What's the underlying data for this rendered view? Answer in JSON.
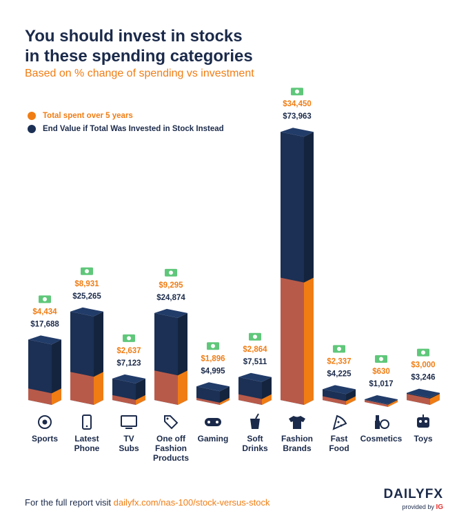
{
  "header": {
    "title_line1": "You should invest in stocks",
    "title_line2": "in these spending categories",
    "subtitle": "Based on % change of spending vs investment"
  },
  "colors": {
    "orange": "#f07d14",
    "navy": "#1b3054",
    "green": "#5fc77a",
    "text_dark": "#1b2a4a"
  },
  "chart_data": {
    "type": "bar",
    "title": "You should invest in stocks in these spending categories",
    "subtitle": "Based on % change of spending vs investment",
    "categories": [
      "Sports",
      "Latest Phone",
      "TV Subs",
      "One off Fashion Products",
      "Gaming",
      "Soft Drinks",
      "Fashion Brands",
      "Fast Food",
      "Cosmetics",
      "Toys"
    ],
    "category_labels": [
      [
        "Sports"
      ],
      [
        "Latest",
        "Phone"
      ],
      [
        "TV",
        "Subs"
      ],
      [
        "One off",
        "Fashion",
        "Products"
      ],
      [
        "Gaming"
      ],
      [
        "Soft",
        "Drinks"
      ],
      [
        "Fashion",
        "Brands"
      ],
      [
        "Fast",
        "Food"
      ],
      [
        "Cosmetics"
      ],
      [
        "Toys"
      ]
    ],
    "icons": [
      "soccer-ball-icon",
      "phone-icon",
      "tv-icon",
      "tags-icon",
      "gamepad-icon",
      "soft-drink-icon",
      "tshirt-icon",
      "pizza-icon",
      "cosmetics-icon",
      "robot-icon"
    ],
    "series": [
      {
        "name": "Total spent over 5 years",
        "values": [
          4434,
          8931,
          2637,
          9295,
          1896,
          2864,
          34450,
          2337,
          630,
          3000
        ],
        "labels": [
          "$4,434",
          "$8,931",
          "$2,637",
          "$9,295",
          "$1,896",
          "$2,864",
          "$34,450",
          "$2,337",
          "$630",
          "$3,000"
        ]
      },
      {
        "name": "End Value if Total Was Invested in Stock Instead",
        "values": [
          17688,
          25265,
          7123,
          24874,
          4995,
          7511,
          73963,
          4225,
          1017,
          3246
        ],
        "labels": [
          "$17,688",
          "$25,265",
          "$7,123",
          "$24,874",
          "$4,995",
          "$7,511",
          "$73,963",
          "$4,225",
          "$1,017",
          "$3,246"
        ]
      }
    ],
    "legend": [
      "Total spent over 5 years",
      "End Value if Total Was Invested in Stock Instead"
    ],
    "legend_position": "top-left",
    "ylim": [
      0,
      74000
    ]
  },
  "footer": {
    "text": "For the full report visit ",
    "link": "dailyfx.com/nas-100/stock-versus-stock"
  },
  "brand": {
    "logo_part1": "DAILY",
    "logo_part2": "FX",
    "provided_by": "provided by ",
    "ig": "IG"
  }
}
